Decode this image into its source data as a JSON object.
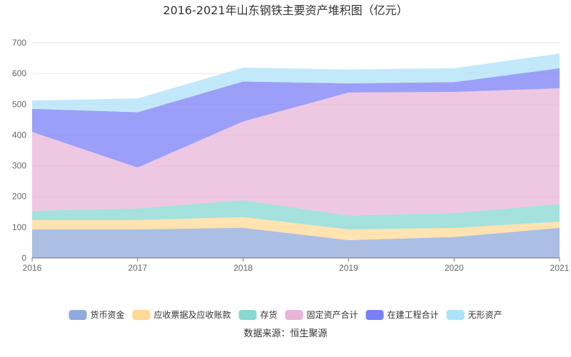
{
  "chart_data": {
    "type": "area",
    "title": "2016-2021年山东钢铁主要资产堆积图（亿元）",
    "source": "数据来源：恒生聚源",
    "categories": [
      "2016",
      "2017",
      "2018",
      "2019",
      "2020",
      "2021"
    ],
    "ylim": [
      0,
      700
    ],
    "yticks": [
      0,
      100,
      200,
      300,
      400,
      500,
      600,
      700
    ],
    "stacked": true,
    "grid": true,
    "legend_position": "bottom",
    "series": [
      {
        "name": "货币资金",
        "color": "#8faadc",
        "values": [
          93,
          93,
          98,
          58,
          68,
          98
        ]
      },
      {
        "name": "应收票据及应收账款",
        "color": "#ffd995",
        "values": [
          30,
          30,
          35,
          35,
          30,
          20
        ]
      },
      {
        "name": "存货",
        "color": "#87d7d2",
        "values": [
          30,
          38,
          55,
          45,
          48,
          58
        ]
      },
      {
        "name": "固定资产合计",
        "color": "#e8b6d8",
        "values": [
          257,
          133,
          256,
          400,
          394,
          376
        ]
      },
      {
        "name": "在建工程合计",
        "color": "#7b7ff5",
        "values": [
          75,
          180,
          130,
          30,
          32,
          65
        ]
      },
      {
        "name": "无形资产",
        "color": "#ade2f8",
        "values": [
          27,
          45,
          45,
          45,
          45,
          48
        ]
      }
    ]
  }
}
